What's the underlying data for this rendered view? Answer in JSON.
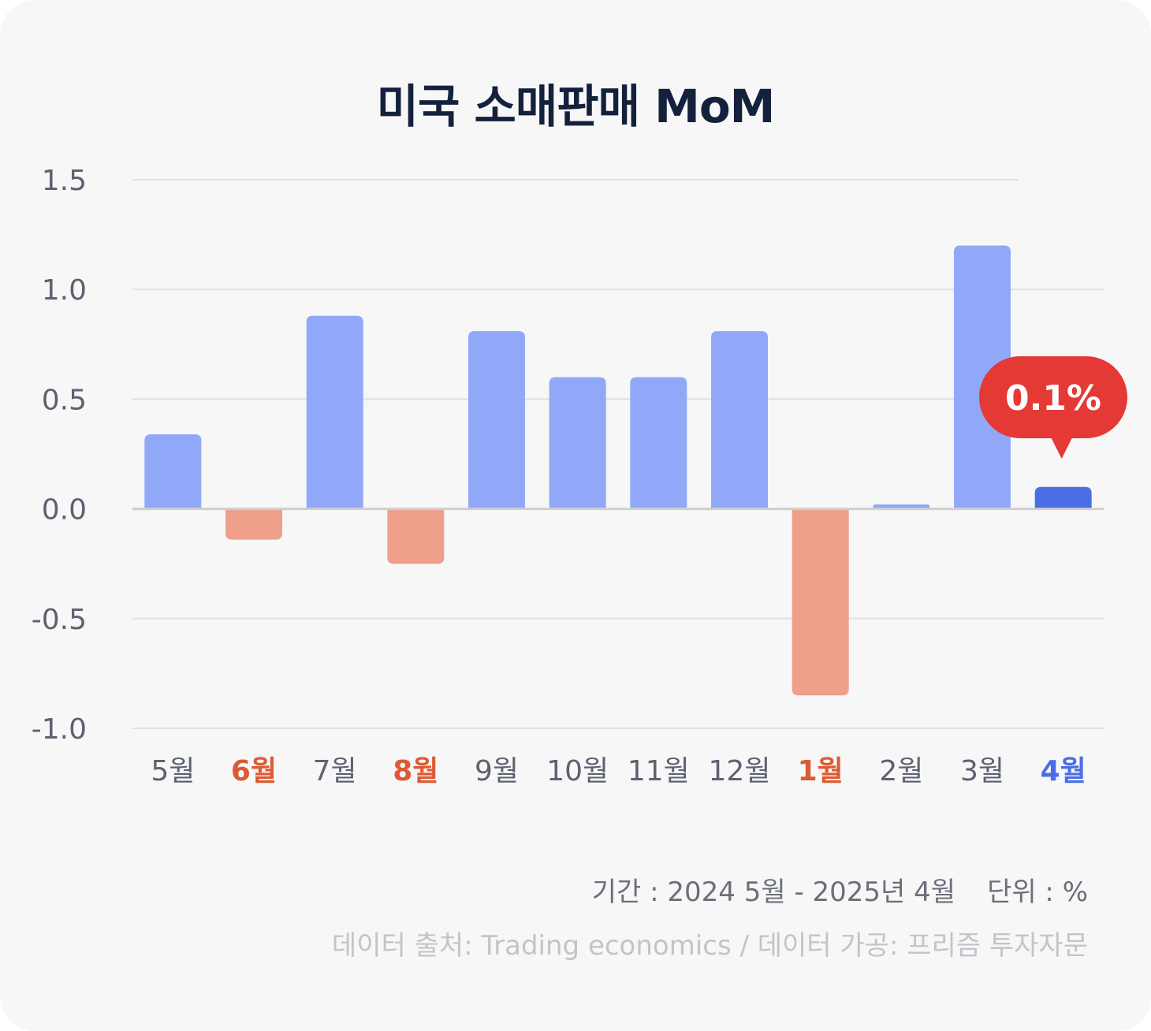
{
  "title": "미국 소매판매 MoM",
  "footer": {
    "period": "기간 : 2024 5월 - 2025년 4월",
    "unit": "단위 : %",
    "source": "데이터 출처: Trading economics / 데이터 가공: 프리즘 투자자문"
  },
  "colors": {
    "positive": "#91a8f8",
    "negative": "#eea08b",
    "highlight": "#4a6ee6",
    "negative_label": "#de5a33",
    "callout": "#e53935",
    "axis_text": "#5d6270",
    "grid": "#e0e0e0",
    "zero_line": "#cfcfcf"
  },
  "chart_data": {
    "type": "bar",
    "title": "미국 소매판매 MoM",
    "categories": [
      "5월",
      "6월",
      "7월",
      "8월",
      "9월",
      "10월",
      "11월",
      "12월",
      "1월",
      "2월",
      "3월",
      "4월"
    ],
    "values": [
      0.34,
      -0.14,
      0.88,
      -0.25,
      0.81,
      0.6,
      0.6,
      0.81,
      -0.85,
      0.02,
      1.2,
      0.1
    ],
    "ylim": [
      -1.0,
      1.5
    ],
    "yticks": [
      "1.5",
      "1.0",
      "0.5",
      "0.0",
      "-0.5",
      "-1.0"
    ],
    "highlight_index": 11,
    "callout": "0.1%",
    "grid": true,
    "xlabel": "",
    "ylabel": ""
  }
}
